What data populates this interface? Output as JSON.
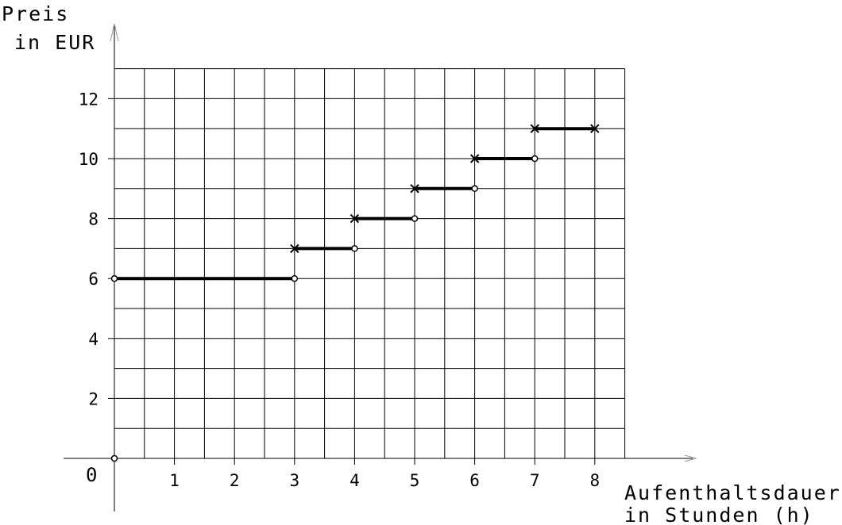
{
  "chart_data": {
    "type": "line",
    "title": "",
    "ylabel_line1": "Preis",
    "ylabel_line2": "in EUR",
    "xlabel_line1": "Aufenthaltsdauer",
    "xlabel_line2": "in Stunden (h)",
    "origin_label": "0",
    "xlim": [
      0,
      8.5
    ],
    "ylim": [
      0,
      13
    ],
    "x_ticks": [
      1,
      2,
      3,
      4,
      5,
      6,
      7,
      8
    ],
    "y_ticks": [
      2,
      4,
      6,
      8,
      10,
      12
    ],
    "grid": true,
    "grid_x_step": 0.5,
    "grid_y_step": 1,
    "segments": [
      {
        "x_start": 0,
        "x_end": 3,
        "value": 6,
        "start_marker": "open-circle",
        "end_marker": "open-circle"
      },
      {
        "x_start": 3,
        "x_end": 4,
        "value": 7,
        "start_marker": "cross",
        "end_marker": "open-circle"
      },
      {
        "x_start": 4,
        "x_end": 5,
        "value": 8,
        "start_marker": "cross",
        "end_marker": "open-circle"
      },
      {
        "x_start": 5,
        "x_end": 6,
        "value": 9,
        "start_marker": "cross",
        "end_marker": "open-circle"
      },
      {
        "x_start": 6,
        "x_end": 7,
        "value": 10,
        "start_marker": "cross",
        "end_marker": "open-circle"
      },
      {
        "x_start": 7,
        "x_end": 8,
        "value": 11,
        "start_marker": "cross",
        "end_marker": "cross"
      }
    ],
    "origin_point": {
      "x": 0,
      "y": 0,
      "marker": "open-circle"
    }
  }
}
